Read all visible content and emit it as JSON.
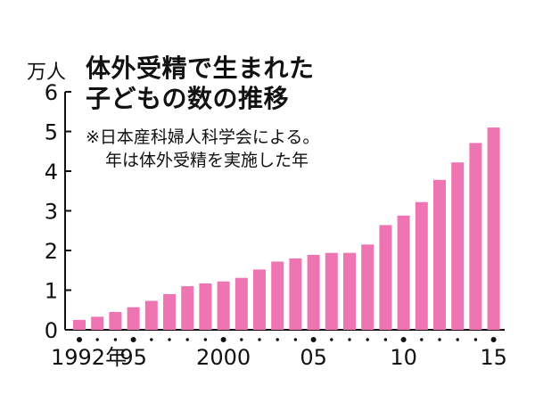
{
  "chart_data": {
    "type": "bar",
    "title_lines": [
      "体外受精で生まれた",
      "子どもの数の推移"
    ],
    "notes": [
      "※日本産科婦人科学会による。",
      "年は体外受精を実施した年"
    ],
    "y_unit": "万人",
    "ylim": [
      0,
      6
    ],
    "y_ticks": [
      "0",
      "1",
      "2",
      "3",
      "4",
      "5",
      "6"
    ],
    "x_tick_labels": [
      {
        "index": 0,
        "label": "1992年"
      },
      {
        "index": 3,
        "label": "95"
      },
      {
        "index": 8,
        "label": "2000"
      },
      {
        "index": 13,
        "label": "05"
      },
      {
        "index": 18,
        "label": "10"
      },
      {
        "index": 23,
        "label": "15"
      }
    ],
    "categories": [
      "1992",
      "1993",
      "1994",
      "1995",
      "1996",
      "1997",
      "1998",
      "1999",
      "2000",
      "2001",
      "2002",
      "2003",
      "2004",
      "2005",
      "2006",
      "2007",
      "2008",
      "2009",
      "2010",
      "2011",
      "2012",
      "2013",
      "2014",
      "2015"
    ],
    "values": [
      0.25,
      0.33,
      0.45,
      0.57,
      0.73,
      0.9,
      1.1,
      1.17,
      1.22,
      1.31,
      1.52,
      1.72,
      1.8,
      1.89,
      1.94,
      1.94,
      2.15,
      2.64,
      2.88,
      3.22,
      3.78,
      4.22,
      4.71,
      5.1
    ],
    "bar_color": "#ef74b2",
    "grid": false
  }
}
